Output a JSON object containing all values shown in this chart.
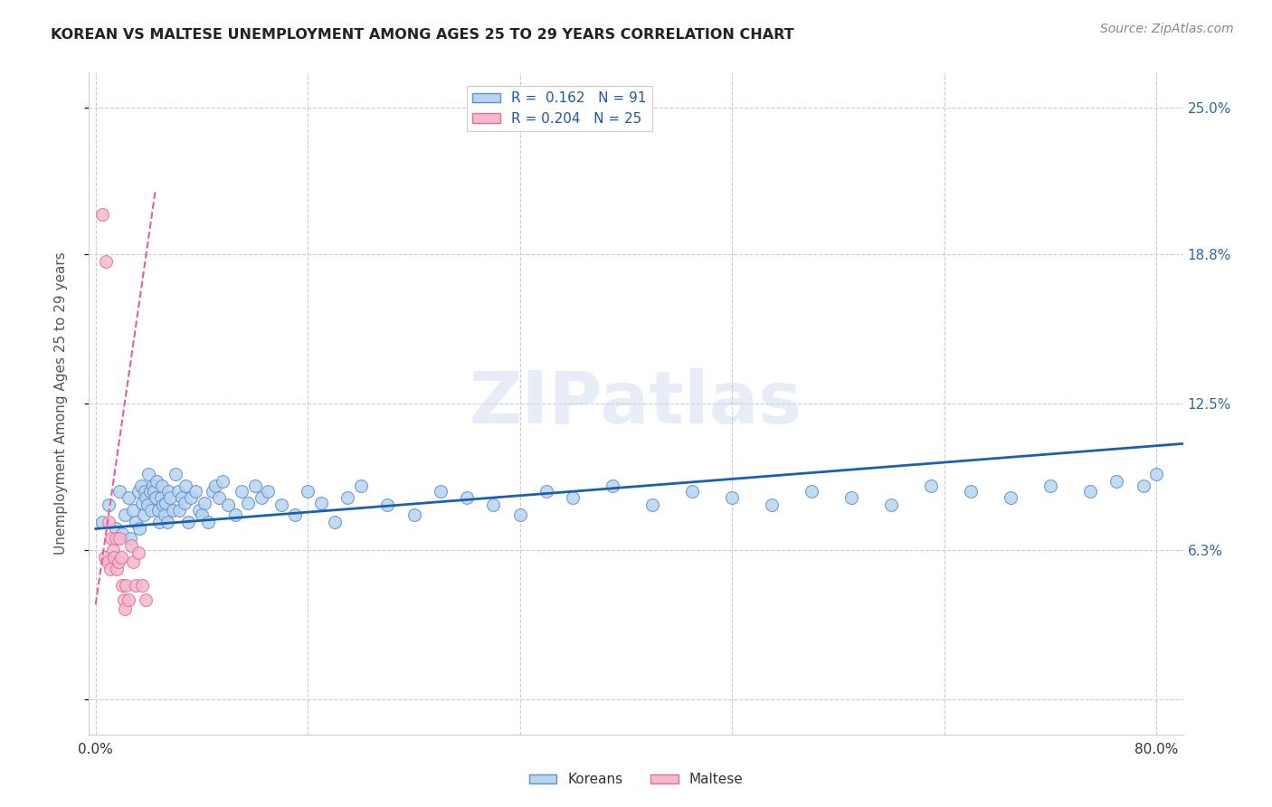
{
  "title": "KOREAN VS MALTESE UNEMPLOYMENT AMONG AGES 25 TO 29 YEARS CORRELATION CHART",
  "source": "Source: ZipAtlas.com",
  "xlabel": "",
  "ylabel": "Unemployment Among Ages 25 to 29 years",
  "xlim": [
    -0.005,
    0.82
  ],
  "ylim": [
    -0.015,
    0.265
  ],
  "xtick_positions": [
    0.0,
    0.8
  ],
  "xticklabels": [
    "0.0%",
    "80.0%"
  ],
  "ytick_positions": [
    0.0,
    0.063,
    0.125,
    0.188,
    0.25
  ],
  "yticklabels": [
    "",
    "6.3%",
    "12.5%",
    "18.8%",
    "25.0%"
  ],
  "grid_color": "#cccccc",
  "background_color": "#ffffff",
  "korean_color": "#b8d4f0",
  "maltese_color": "#f5b8d0",
  "korean_edge_color": "#6090c8",
  "maltese_edge_color": "#e07090",
  "trend_korean_color": "#1a5fb4",
  "trend_maltese_color": "#e060a0",
  "marker_size": 100,
  "legend_korean_label": "R =  0.162   N = 91",
  "legend_maltese_label": "R = 0.204   N = 25",
  "bottom_legend_korean": "Koreans",
  "bottom_legend_maltese": "Maltese",
  "watermark": "ZIPatlas",
  "koreans_x": [
    0.005,
    0.01,
    0.015,
    0.018,
    0.02,
    0.022,
    0.025,
    0.026,
    0.028,
    0.03,
    0.032,
    0.033,
    0.034,
    0.035,
    0.036,
    0.037,
    0.038,
    0.039,
    0.04,
    0.041,
    0.042,
    0.043,
    0.044,
    0.045,
    0.046,
    0.047,
    0.048,
    0.049,
    0.05,
    0.051,
    0.052,
    0.053,
    0.054,
    0.055,
    0.056,
    0.058,
    0.06,
    0.062,
    0.063,
    0.065,
    0.067,
    0.068,
    0.07,
    0.072,
    0.075,
    0.078,
    0.08,
    0.082,
    0.085,
    0.088,
    0.09,
    0.093,
    0.096,
    0.1,
    0.105,
    0.11,
    0.115,
    0.12,
    0.125,
    0.13,
    0.14,
    0.15,
    0.16,
    0.17,
    0.18,
    0.19,
    0.2,
    0.22,
    0.24,
    0.26,
    0.28,
    0.3,
    0.32,
    0.34,
    0.36,
    0.39,
    0.42,
    0.45,
    0.48,
    0.51,
    0.54,
    0.57,
    0.6,
    0.63,
    0.66,
    0.69,
    0.72,
    0.75,
    0.77,
    0.79,
    0.8
  ],
  "koreans_y": [
    0.075,
    0.082,
    0.072,
    0.088,
    0.07,
    0.078,
    0.085,
    0.068,
    0.08,
    0.075,
    0.088,
    0.072,
    0.09,
    0.083,
    0.078,
    0.088,
    0.085,
    0.082,
    0.095,
    0.088,
    0.08,
    0.09,
    0.088,
    0.085,
    0.092,
    0.08,
    0.075,
    0.085,
    0.09,
    0.082,
    0.078,
    0.083,
    0.075,
    0.088,
    0.085,
    0.08,
    0.095,
    0.088,
    0.08,
    0.085,
    0.083,
    0.09,
    0.075,
    0.085,
    0.088,
    0.08,
    0.078,
    0.083,
    0.075,
    0.088,
    0.09,
    0.085,
    0.092,
    0.082,
    0.078,
    0.088,
    0.083,
    0.09,
    0.085,
    0.088,
    0.082,
    0.078,
    0.088,
    0.083,
    0.075,
    0.085,
    0.09,
    0.082,
    0.078,
    0.088,
    0.085,
    0.082,
    0.078,
    0.088,
    0.085,
    0.09,
    0.082,
    0.088,
    0.085,
    0.082,
    0.088,
    0.085,
    0.082,
    0.09,
    0.088,
    0.085,
    0.09,
    0.088,
    0.092,
    0.09,
    0.095
  ],
  "maltese_x": [
    0.005,
    0.007,
    0.008,
    0.009,
    0.01,
    0.011,
    0.012,
    0.013,
    0.014,
    0.015,
    0.016,
    0.017,
    0.018,
    0.019,
    0.02,
    0.021,
    0.022,
    0.023,
    0.025,
    0.027,
    0.028,
    0.03,
    0.032,
    0.035,
    0.038
  ],
  "maltese_y": [
    0.205,
    0.06,
    0.185,
    0.058,
    0.075,
    0.055,
    0.068,
    0.063,
    0.06,
    0.068,
    0.055,
    0.058,
    0.068,
    0.06,
    0.048,
    0.042,
    0.038,
    0.048,
    0.042,
    0.065,
    0.058,
    0.048,
    0.062,
    0.048,
    0.042
  ],
  "korean_trend_x0": 0.0,
  "korean_trend_x1": 0.82,
  "korean_trend_y0": 0.072,
  "korean_trend_y1": 0.108,
  "maltese_trend_x0": 0.0,
  "maltese_trend_x1": 0.045,
  "maltese_trend_y0": 0.04,
  "maltese_trend_y1": 0.215
}
